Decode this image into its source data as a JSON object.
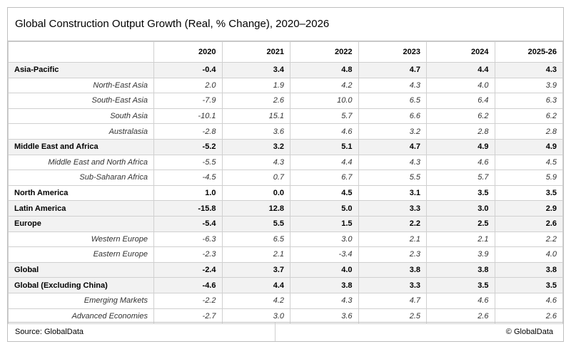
{
  "title": "Global Construction Output Growth (Real, % Change), 2020–2026",
  "columns": [
    "",
    "2020",
    "2021",
    "2022",
    "2023",
    "2024",
    "2025-26"
  ],
  "rows": [
    {
      "label": "Asia-Pacific",
      "type": "region",
      "values": [
        "-0.4",
        "3.4",
        "4.8",
        "4.7",
        "4.4",
        "4.3"
      ]
    },
    {
      "label": "North-East Asia",
      "type": "sub",
      "values": [
        "2.0",
        "1.9",
        "4.2",
        "4.3",
        "4.0",
        "3.9"
      ]
    },
    {
      "label": "South-East Asia",
      "type": "sub",
      "values": [
        "-7.9",
        "2.6",
        "10.0",
        "6.5",
        "6.4",
        "6.3"
      ]
    },
    {
      "label": "South Asia",
      "type": "sub",
      "values": [
        "-10.1",
        "15.1",
        "5.7",
        "6.6",
        "6.2",
        "6.2"
      ]
    },
    {
      "label": "Australasia",
      "type": "sub",
      "values": [
        "-2.8",
        "3.6",
        "4.6",
        "3.2",
        "2.8",
        "2.8"
      ]
    },
    {
      "label": "Middle East and Africa",
      "type": "region",
      "values": [
        "-5.2",
        "3.2",
        "5.1",
        "4.7",
        "4.9",
        "4.9"
      ]
    },
    {
      "label": "Middle East and North Africa",
      "type": "sub",
      "values": [
        "-5.5",
        "4.3",
        "4.4",
        "4.3",
        "4.6",
        "4.5"
      ]
    },
    {
      "label": "Sub-Saharan Africa",
      "type": "sub",
      "values": [
        "-4.5",
        "0.7",
        "6.7",
        "5.5",
        "5.7",
        "5.9"
      ]
    },
    {
      "label": "North America",
      "type": "region-white",
      "values": [
        "1.0",
        "0.0",
        "4.5",
        "3.1",
        "3.5",
        "3.5"
      ]
    },
    {
      "label": "Latin America",
      "type": "region",
      "values": [
        "-15.8",
        "12.8",
        "5.0",
        "3.3",
        "3.0",
        "2.9"
      ]
    },
    {
      "label": "Europe",
      "type": "region",
      "values": [
        "-5.4",
        "5.5",
        "1.5",
        "2.2",
        "2.5",
        "2.6"
      ]
    },
    {
      "label": "Western Europe",
      "type": "sub",
      "values": [
        "-6.3",
        "6.5",
        "3.0",
        "2.1",
        "2.1",
        "2.2"
      ]
    },
    {
      "label": "Eastern Europe",
      "type": "sub",
      "values": [
        "-2.3",
        "2.1",
        "-3.4",
        "2.3",
        "3.9",
        "4.0"
      ]
    },
    {
      "label": "Global",
      "type": "region",
      "values": [
        "-2.4",
        "3.7",
        "4.0",
        "3.8",
        "3.8",
        "3.8"
      ]
    },
    {
      "label": "Global (Excluding China)",
      "type": "region",
      "values": [
        "-4.6",
        "4.4",
        "3.8",
        "3.3",
        "3.5",
        "3.5"
      ]
    },
    {
      "label": "Emerging Markets",
      "type": "sub",
      "values": [
        "-2.2",
        "4.2",
        "4.3",
        "4.7",
        "4.6",
        "4.6"
      ]
    },
    {
      "label": "Advanced Economies",
      "type": "sub",
      "values": [
        "-2.7",
        "3.0",
        "3.6",
        "2.5",
        "2.6",
        "2.6"
      ]
    }
  ],
  "footer": {
    "source": "Source: GlobalData",
    "copyright": "© GlobalData"
  }
}
